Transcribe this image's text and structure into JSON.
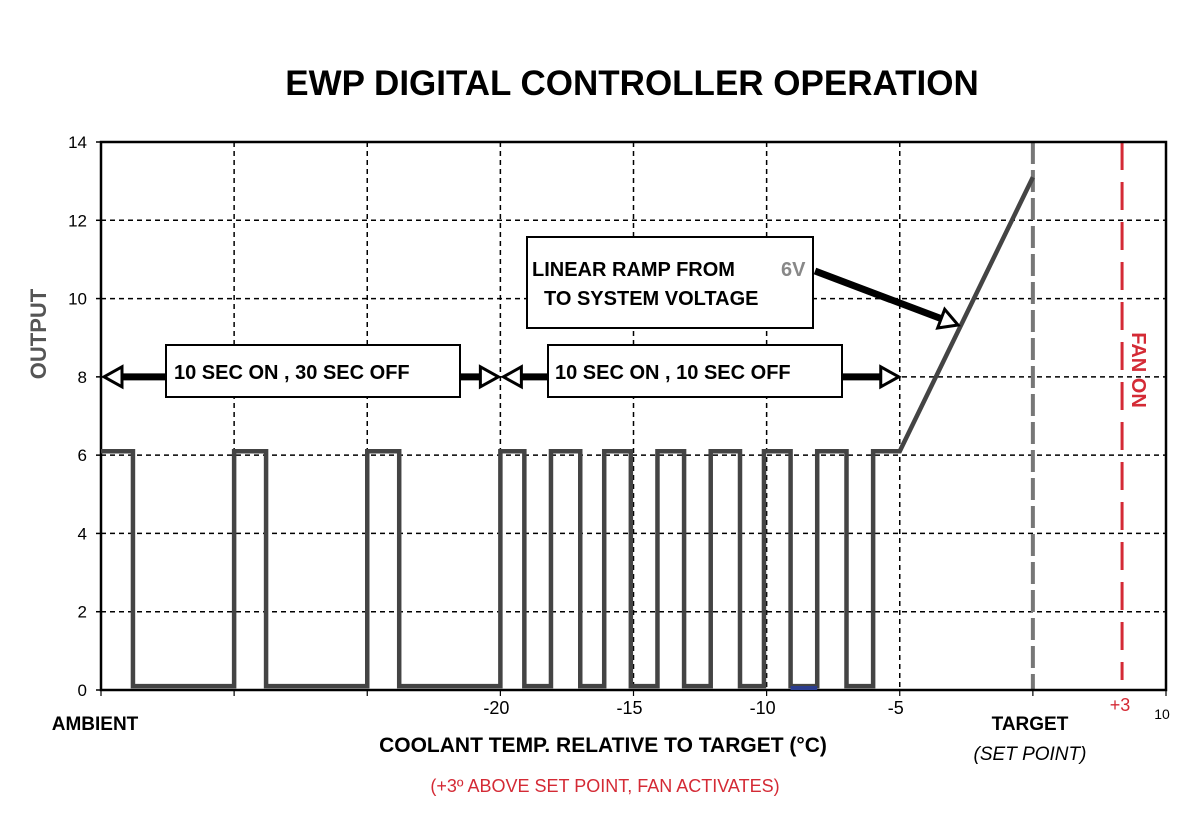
{
  "chart_data": {
    "type": "line",
    "title": "EWP DIGITAL CONTROLLER OPERATION",
    "xlabel": "COOLANT TEMP. RELATIVE TO TARGET (°C)",
    "ylabel": "OUTPUT",
    "note": "(+3º ABOVE SET POINT, FAN ACTIVATES)",
    "xlim": [
      -35,
      5
    ],
    "ylim": [
      0,
      14
    ],
    "grid": true,
    "y_ticks": [
      0,
      2,
      4,
      6,
      8,
      10,
      12,
      14
    ],
    "x_ticks": [
      {
        "value": -20,
        "label": "-20"
      },
      {
        "value": -15,
        "label": "-15"
      },
      {
        "value": -10,
        "label": "-10"
      },
      {
        "value": -5,
        "label": "-5"
      }
    ],
    "x_grid": [
      -30,
      -25,
      -20,
      -15,
      -10,
      -5
    ],
    "x_extra_labels": {
      "ambient": "AMBIENT",
      "target": "TARGET",
      "set_point": "(SET POINT)",
      "plus3": "+3",
      "right_end": "10"
    },
    "target_line_x": 0,
    "fan_line_x": 3.35,
    "fan_label": "FAN ON",
    "series": [
      {
        "x": [
          -35,
          -33.8,
          -33.8,
          -30,
          -30,
          -28.8,
          -28.8,
          -25,
          -25,
          -23.8,
          -23.8,
          -20,
          -20,
          -19.1,
          -19.1,
          -18.1,
          -18.1,
          -17.0,
          -17.0,
          -16.1,
          -16.1,
          -15.1,
          -15.1,
          -14.1,
          -14.1,
          -13.1,
          -13.1,
          -12.1,
          -12.1,
          -11.0,
          -11.0,
          -10.1,
          -10.1,
          -9.1,
          -9.1,
          -8.1,
          -8.1,
          -7.0,
          -7.0,
          -6.0,
          -6.0,
          -5,
          0
        ],
        "y": [
          6.1,
          6.1,
          0.1,
          0.1,
          6.1,
          6.1,
          0.1,
          0.1,
          6.1,
          6.1,
          0.1,
          0.1,
          6.1,
          6.1,
          0.1,
          0.1,
          6.1,
          6.1,
          0.1,
          0.1,
          6.1,
          6.1,
          0.1,
          0.1,
          6.1,
          6.1,
          0.1,
          0.1,
          6.1,
          6.1,
          0.1,
          0.1,
          6.1,
          6.1,
          0.1,
          0.1,
          6.1,
          6.1,
          0.1,
          0.1,
          6.1,
          6.1,
          13.1
        ]
      }
    ],
    "annotations": [
      {
        "text": "10 SEC ON , 30 SEC OFF",
        "x_range": [
          -35,
          -20
        ],
        "y": 8
      },
      {
        "text": "10 SEC ON , 10 SEC OFF",
        "x_range": [
          -20,
          -5
        ],
        "y": 8
      },
      {
        "line1": "LINEAR RAMP FROM",
        "value": "6V",
        "line2": "TO SYSTEM VOLTAGE"
      }
    ],
    "colors": {
      "line": "#444444",
      "target": "#777777",
      "fan": "#d42a35",
      "accent_segment": "#2b3d8f"
    }
  }
}
